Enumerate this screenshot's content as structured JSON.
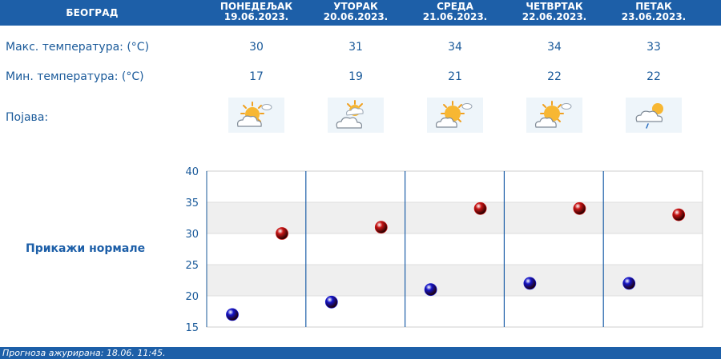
{
  "header": {
    "city": "БЕОГРАД",
    "days": [
      {
        "name": "ПОНЕДЕЉАК",
        "date": "19.06.2023."
      },
      {
        "name": "УТОРАК",
        "date": "20.06.2023."
      },
      {
        "name": "СРЕДА",
        "date": "21.06.2023."
      },
      {
        "name": "ЧЕТВРТАК",
        "date": "22.06.2023."
      },
      {
        "name": "ПЕТАК",
        "date": "23.06.2023."
      }
    ]
  },
  "rows": {
    "max_label": "Макс. температура: (°C)",
    "min_label": "Мин. температура: (°C)",
    "weather_label": "Појава:",
    "max": [
      "30",
      "31",
      "34",
      "34",
      "33"
    ],
    "min": [
      "17",
      "19",
      "21",
      "22",
      "22"
    ],
    "icons": [
      "sun-behind-cloud-icon",
      "cloud-with-sun-icon",
      "sun-behind-cloud-icon",
      "sun-behind-cloud-icon",
      "cloud-with-rain-icon"
    ]
  },
  "normals_link": "Прикажи нормале",
  "chart_data": {
    "type": "scatter",
    "ylim": [
      15,
      40
    ],
    "y_ticks": [
      "40",
      "35",
      "30",
      "25",
      "20",
      "15"
    ],
    "grid": true,
    "series": [
      {
        "values": [
          17,
          19,
          21,
          22,
          22
        ],
        "color": "#1515c8"
      },
      {
        "values": [
          30,
          31,
          34,
          34,
          33
        ],
        "color": "#c81515"
      }
    ]
  },
  "colors": {
    "header_bg": "#1d5fa8",
    "text": "#1a5a9a",
    "band": "#efefef",
    "min_marker": "#1515c8",
    "max_marker": "#c81515"
  },
  "footer": {
    "text": "Прогноза ажурирана:  18.06. 11:45."
  }
}
